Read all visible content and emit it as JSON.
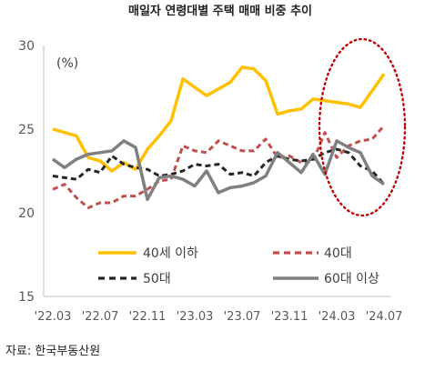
{
  "chart_data": {
    "type": "line",
    "title": "매일자 연령대별 주택 매매 비중 추이",
    "unit_label": "(%)",
    "ylim": [
      15,
      30
    ],
    "yticks": [
      "15",
      "20",
      "25",
      "30"
    ],
    "x_tick_labels": [
      "'22.03",
      "'22.07",
      "'22.11",
      "'23.03",
      "'23.07",
      "'23.11",
      "'24.03",
      "'24.07"
    ],
    "x_tick_months": [
      "2022-03",
      "2022-07",
      "2022-11",
      "2023-03",
      "2023-07",
      "2023-11",
      "2024-03",
      "2024-07"
    ],
    "x": [
      "2022-03",
      "2022-04",
      "2022-05",
      "2022-06",
      "2022-07",
      "2022-08",
      "2022-09",
      "2022-10",
      "2022-11",
      "2022-12",
      "2023-01",
      "2023-02",
      "2023-03",
      "2023-04",
      "2023-05",
      "2023-06",
      "2023-07",
      "2023-08",
      "2023-09",
      "2023-10",
      "2023-11",
      "2023-12",
      "2024-01",
      "2024-02",
      "2024-03",
      "2024-04",
      "2024-05",
      "2024-06",
      "2024-07"
    ],
    "series": [
      {
        "name": "40세 이하",
        "color": "#FFC000",
        "style": "solid",
        "values": [
          25.0,
          24.8,
          24.6,
          23.3,
          23.1,
          22.5,
          23.0,
          22.6,
          23.8,
          24.6,
          25.5,
          28.0,
          27.5,
          27.0,
          27.4,
          27.8,
          28.7,
          28.6,
          27.9,
          25.9,
          26.1,
          26.2,
          26.8,
          26.7,
          26.6,
          26.5,
          26.3,
          27.3,
          28.3
        ]
      },
      {
        "name": "40대",
        "color": "#C0504D",
        "style": "dashed",
        "values": [
          21.4,
          21.7,
          20.9,
          20.3,
          20.6,
          20.6,
          21.0,
          21.0,
          21.4,
          21.9,
          22.0,
          24.0,
          23.7,
          23.6,
          24.3,
          24.0,
          23.7,
          23.7,
          24.4,
          23.3,
          23.4,
          23.0,
          23.1,
          24.8,
          23.3,
          24.0,
          24.3,
          24.4,
          25.2
        ]
      },
      {
        "name": "50대",
        "color": "#262626",
        "style": "dashed",
        "values": [
          22.2,
          22.1,
          22.0,
          22.6,
          22.4,
          23.4,
          22.9,
          22.7,
          22.6,
          22.2,
          22.3,
          22.5,
          22.9,
          22.8,
          22.9,
          22.3,
          22.4,
          22.2,
          23.0,
          23.4,
          23.2,
          23.1,
          23.2,
          23.6,
          23.8,
          23.6,
          22.8,
          22.5,
          21.7
        ]
      },
      {
        "name": "60대 이상",
        "color": "#808080",
        "style": "solid",
        "values": [
          23.2,
          22.7,
          23.2,
          23.5,
          23.6,
          23.7,
          24.3,
          23.9,
          20.8,
          22.1,
          22.2,
          22.0,
          21.6,
          22.5,
          21.2,
          21.5,
          21.6,
          21.8,
          22.2,
          23.6,
          23.0,
          22.4,
          23.5,
          22.3,
          24.3,
          23.9,
          23.6,
          22.2,
          21.7
        ]
      }
    ],
    "annotation": {
      "shape": "dotted-ellipse",
      "color": "#C00000",
      "covers": [
        "2024-03",
        "2024-07"
      ]
    },
    "legend": {
      "placement": "bottom-inside",
      "columns": 2
    },
    "grid": false
  },
  "footer": {
    "source": "자료: 한국부동산원"
  }
}
